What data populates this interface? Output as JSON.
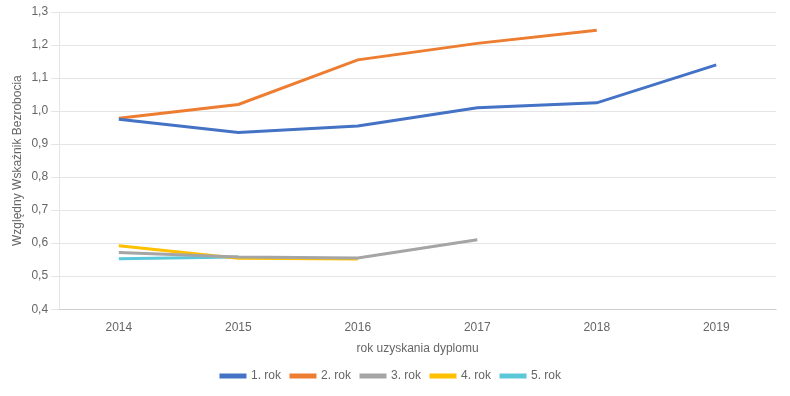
{
  "chart_data": {
    "type": "line",
    "xlabel": "rok uzyskania dyplomu",
    "ylabel": "Względny Wskaźnik Bezrobocia",
    "series": [
      {
        "name": "1. rok",
        "color": "#4472C4",
        "x": [
          2014,
          2015,
          2016,
          2017,
          2018,
          2019
        ],
        "values": [
          0.975,
          0.935,
          0.955,
          1.01,
          1.025,
          1.14
        ]
      },
      {
        "name": "2. rok",
        "color": "#ED7D31",
        "x": [
          2014,
          2015,
          2016,
          2017,
          2018
        ],
        "values": [
          0.978,
          1.02,
          1.155,
          1.205,
          1.245
        ]
      },
      {
        "name": "3. rok",
        "color": "#A5A5A5",
        "x": [
          2014,
          2015,
          2016,
          2017
        ],
        "values": [
          0.572,
          0.558,
          0.555,
          0.61
        ]
      },
      {
        "name": "4. rok",
        "color": "#FFC000",
        "x": [
          2014,
          2015,
          2016
        ],
        "values": [
          0.592,
          0.554,
          0.552
        ]
      },
      {
        "name": "5. rok",
        "color": "#5BC8D9",
        "x": [
          2014,
          2015
        ],
        "values": [
          0.553,
          0.558
        ]
      }
    ],
    "xlim": [
      2013.5,
      2019.5
    ],
    "xticks": [
      2014,
      2015,
      2016,
      2017,
      2018,
      2019
    ],
    "ylim": [
      0.4,
      1.3
    ],
    "yticks": [
      {
        "value": 0.4,
        "label": "0,4"
      },
      {
        "value": 0.5,
        "label": "0,5"
      },
      {
        "value": 0.6,
        "label": "0,6"
      },
      {
        "value": 0.7,
        "label": "0,7"
      },
      {
        "value": 0.8,
        "label": "0,8"
      },
      {
        "value": 0.9,
        "label": "0,9"
      },
      {
        "value": 1.0,
        "label": "1,0"
      },
      {
        "value": 1.1,
        "label": "1,1"
      },
      {
        "value": 1.2,
        "label": "1,2"
      },
      {
        "value": 1.3,
        "label": "1,3"
      }
    ],
    "grid": "y",
    "legend": "bottom"
  }
}
